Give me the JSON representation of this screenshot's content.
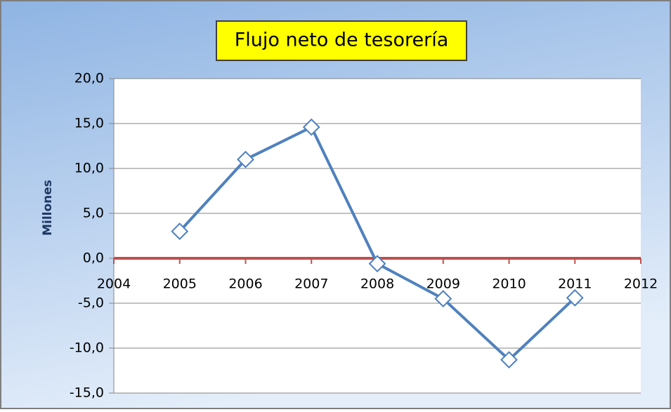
{
  "chart_data": {
    "type": "line",
    "title": "Flujo neto de tesorería",
    "y_label": "Millones",
    "x": [
      2005,
      2006,
      2007,
      2008,
      2009,
      2010,
      2011
    ],
    "series": [
      {
        "color": "#4f81bd",
        "values": [
          3.0,
          11.0,
          14.6,
          -0.6,
          -4.5,
          -11.3,
          -4.4
        ]
      }
    ],
    "xlim": [
      2004,
      2012
    ],
    "xticks": [
      2004,
      2005,
      2006,
      2007,
      2008,
      2009,
      2010,
      2011,
      2012
    ],
    "ylim": [
      -15,
      20
    ],
    "yticks": [
      {
        "value": -15,
        "label": "-15,0"
      },
      {
        "value": -10,
        "label": "-10,0"
      },
      {
        "value": -5,
        "label": "-5,0"
      },
      {
        "value": 0,
        "label": "0,0"
      },
      {
        "value": 5,
        "label": "5,0"
      },
      {
        "value": 10,
        "label": "10,0"
      },
      {
        "value": 15,
        "label": "15,0"
      },
      {
        "value": 20,
        "label": "20,0"
      }
    ],
    "grid": true,
    "zero_line_color": "#c0504d"
  }
}
